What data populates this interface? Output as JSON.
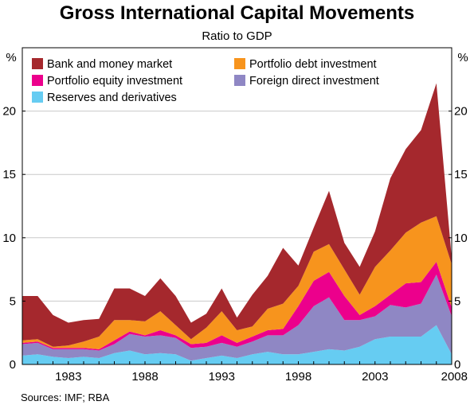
{
  "chart_data": {
    "type": "area",
    "stacked": true,
    "title": "Gross International Capital Movements",
    "subtitle": "Ratio to GDP",
    "ylabel_left": "%",
    "ylabel_right": "%",
    "ylim": [
      0,
      25
    ],
    "yticks": [
      0,
      5,
      10,
      15,
      20
    ],
    "xlim": [
      1980,
      2008
    ],
    "xticks": [
      1983,
      1988,
      1993,
      1998,
      2003,
      2008
    ],
    "grid": "horizontal",
    "legend_position": "top-left",
    "source": "Sources: IMF; RBA",
    "x": [
      1980,
      1981,
      1982,
      1983,
      1984,
      1985,
      1986,
      1987,
      1988,
      1989,
      1990,
      1991,
      1992,
      1993,
      1994,
      1995,
      1996,
      1997,
      1998,
      1999,
      2000,
      2001,
      2002,
      2003,
      2004,
      2005,
      2006,
      2007,
      2008
    ],
    "series": [
      {
        "name": "Reserves and derivatives",
        "color": "#66ccf2",
        "values": [
          0.7,
          0.8,
          0.6,
          0.5,
          0.6,
          0.5,
          0.9,
          1.1,
          0.8,
          0.9,
          0.8,
          0.3,
          0.5,
          0.7,
          0.5,
          0.8,
          1.0,
          0.8,
          0.8,
          1.0,
          1.2,
          1.1,
          1.4,
          2.0,
          2.2,
          2.2,
          2.2,
          3.1,
          0.8
        ]
      },
      {
        "name": "Foreign direct investment",
        "color": "#8f87c4",
        "values": [
          0.9,
          0.9,
          0.6,
          0.7,
          0.6,
          0.6,
          0.7,
          1.3,
          1.4,
          1.4,
          1.3,
          1.0,
          0.9,
          1.0,
          0.9,
          1.0,
          1.3,
          1.5,
          2.3,
          3.6,
          4.1,
          2.4,
          2.1,
          1.8,
          2.5,
          2.3,
          2.6,
          4.0,
          3.0
        ]
      },
      {
        "name": "Portfolio equity investment",
        "color": "#ec008c",
        "values": [
          0.1,
          0.1,
          0.1,
          0.1,
          0.1,
          0.1,
          0.3,
          0.2,
          0.1,
          0.4,
          0.2,
          0.3,
          0.3,
          0.6,
          0.3,
          0.4,
          0.4,
          0.5,
          1.5,
          2.0,
          2.0,
          1.9,
          0.4,
          0.8,
          0.8,
          1.9,
          1.7,
          1.0,
          0.7
        ]
      },
      {
        "name": "Portfolio debt investment",
        "color": "#f7941d",
        "values": [
          0.2,
          0.2,
          0.1,
          0.2,
          0.5,
          1.0,
          1.6,
          0.9,
          1.1,
          1.5,
          0.8,
          0.4,
          1.2,
          1.9,
          1.0,
          0.8,
          1.7,
          2.0,
          1.6,
          2.3,
          2.2,
          2.1,
          1.6,
          3.1,
          3.5,
          4.0,
          4.7,
          3.6,
          3.4
        ]
      },
      {
        "name": "Bank and money market",
        "color": "#a5282d",
        "values": [
          3.5,
          3.4,
          2.5,
          1.8,
          1.7,
          1.4,
          2.5,
          2.5,
          2.0,
          2.6,
          2.3,
          1.3,
          1.1,
          1.8,
          1.0,
          2.5,
          2.6,
          4.4,
          1.6,
          1.9,
          4.2,
          2.1,
          2.2,
          2.8,
          5.7,
          6.6,
          7.3,
          10.5,
          0.5
        ]
      }
    ]
  }
}
